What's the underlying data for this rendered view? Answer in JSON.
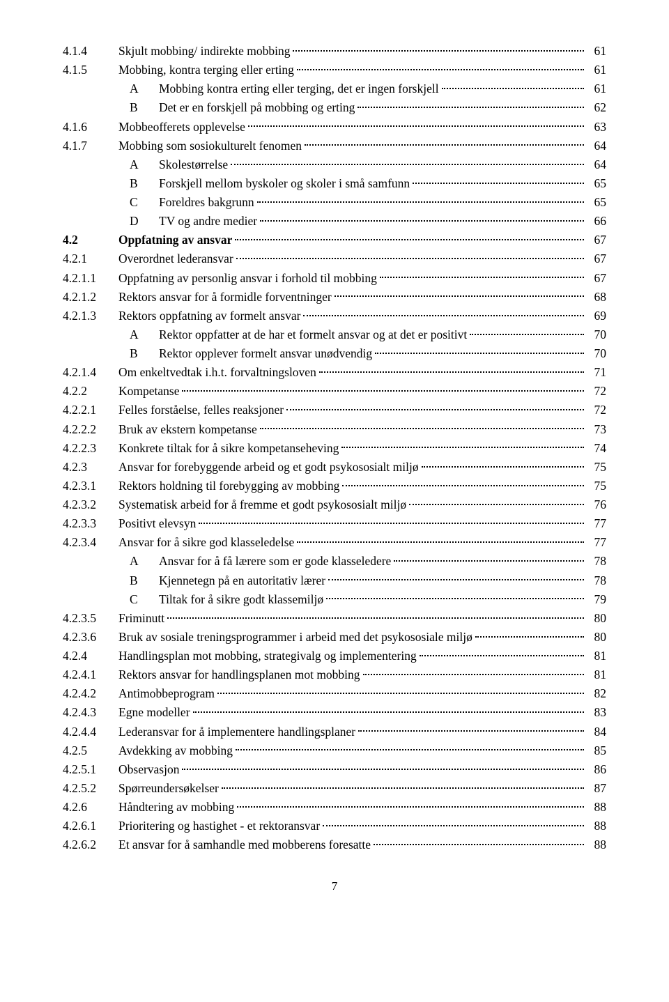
{
  "pageNumber": "7",
  "toc": [
    {
      "num": "4.1.4",
      "title": "Skjult mobbing/ indirekte mobbing",
      "page": "61",
      "bold": false,
      "indent": 0
    },
    {
      "num": "4.1.5",
      "title": "Mobbing, kontra terging eller erting",
      "page": "61",
      "bold": false,
      "indent": 0
    },
    {
      "letter": "A",
      "title": "Mobbing kontra erting eller terging, det er ingen forskjell",
      "page": "61",
      "indent": 1
    },
    {
      "letter": "B",
      "title": "Det er en forskjell på mobbing og erting",
      "page": "62",
      "indent": 1
    },
    {
      "num": "4.1.6",
      "title": "Mobbeofferets opplevelse",
      "page": "63",
      "bold": false,
      "indent": 0
    },
    {
      "num": "4.1.7",
      "title": "Mobbing som sosiokulturelt fenomen",
      "page": "64",
      "bold": false,
      "indent": 0
    },
    {
      "letter": "A",
      "title": "Skolestørrelse",
      "page": "64",
      "indent": 1
    },
    {
      "letter": "B",
      "title": "Forskjell mellom byskoler og skoler i små samfunn",
      "page": "65",
      "indent": 1
    },
    {
      "letter": "C",
      "title": "Foreldres bakgrunn",
      "page": "65",
      "indent": 1
    },
    {
      "letter": "D",
      "title": "TV og andre medier",
      "page": "66",
      "indent": 1
    },
    {
      "num": "4.2",
      "title": "Oppfatning av ansvar",
      "page": "67",
      "bold": true,
      "indent": 0
    },
    {
      "num": "4.2.1",
      "title": "Overordnet lederansvar",
      "page": "67",
      "bold": false,
      "indent": 0
    },
    {
      "num": "4.2.1.1",
      "title": "Oppfatning av personlig ansvar i forhold til mobbing",
      "page": "67",
      "bold": false,
      "indent": 0
    },
    {
      "num": "4.2.1.2",
      "title": "Rektors ansvar for å formidle forventninger",
      "page": "68",
      "bold": false,
      "indent": 0
    },
    {
      "num": "4.2.1.3",
      "title": "Rektors oppfatning av formelt ansvar",
      "page": "69",
      "bold": false,
      "indent": 0
    },
    {
      "letter": "A",
      "title": "Rektor oppfatter at de har et formelt ansvar og at det er positivt",
      "page": "70",
      "indent": 1
    },
    {
      "letter": "B",
      "title": "Rektor opplever formelt ansvar unødvendig",
      "page": "70",
      "indent": 1
    },
    {
      "num": "4.2.1.4",
      "title": "Om enkeltvedtak i.h.t. forvaltningsloven",
      "page": "71",
      "bold": false,
      "indent": 0
    },
    {
      "num": "4.2.2",
      "title": "Kompetanse",
      "page": "72",
      "bold": false,
      "indent": 0
    },
    {
      "num": "4.2.2.1",
      "title": "Felles forståelse, felles reaksjoner",
      "page": "72",
      "bold": false,
      "indent": 0
    },
    {
      "num": "4.2.2.2",
      "title": "Bruk av ekstern kompetanse",
      "page": "73",
      "bold": false,
      "indent": 0
    },
    {
      "num": "4.2.2.3",
      "title": "Konkrete tiltak for å sikre kompetanseheving",
      "page": "74",
      "bold": false,
      "indent": 0
    },
    {
      "num": "4.2.3",
      "title": "Ansvar for forebyggende arbeid og et godt psykososialt miljø",
      "page": "75",
      "bold": false,
      "indent": 0
    },
    {
      "num": "4.2.3.1",
      "title": "Rektors holdning til forebygging av mobbing",
      "page": "75",
      "bold": false,
      "indent": 0
    },
    {
      "num": "4.2.3.2",
      "title": "Systematisk arbeid for å fremme et godt psykososialt miljø",
      "page": "76",
      "bold": false,
      "indent": 0
    },
    {
      "num": "4.2.3.3",
      "title": "Positivt elevsyn",
      "page": "77",
      "bold": false,
      "indent": 0
    },
    {
      "num": "4.2.3.4",
      "title": "Ansvar for å sikre god klasseledelse",
      "page": "77",
      "bold": false,
      "indent": 0
    },
    {
      "letter": "A",
      "title": "Ansvar for å få lærere som er gode klasseledere",
      "page": "78",
      "indent": 1
    },
    {
      "letter": "B",
      "title": "Kjennetegn på en autoritativ lærer",
      "page": "78",
      "indent": 1
    },
    {
      "letter": "C",
      "title": "Tiltak for å sikre godt klassemiljø",
      "page": "79",
      "indent": 1
    },
    {
      "num": "4.2.3.5",
      "title": "Friminutt",
      "page": "80",
      "bold": false,
      "indent": 0
    },
    {
      "num": "4.2.3.6",
      "title": "Bruk av sosiale treningsprogrammer i arbeid med det psykososiale miljø",
      "page": "80",
      "bold": false,
      "indent": 0
    },
    {
      "num": "4.2.4",
      "title": "Handlingsplan mot mobbing, strategivalg og implementering",
      "page": "81",
      "bold": false,
      "indent": 0
    },
    {
      "num": "4.2.4.1",
      "title": "Rektors ansvar for handlingsplanen mot mobbing",
      "page": "81",
      "bold": false,
      "indent": 0
    },
    {
      "num": "4.2.4.2",
      "title": "Antimobbeprogram",
      "page": "82",
      "bold": false,
      "indent": 0
    },
    {
      "num": "4.2.4.3",
      "title": "Egne modeller",
      "page": "83",
      "bold": false,
      "indent": 0
    },
    {
      "num": "4.2.4.4",
      "title": "Lederansvar for å implementere handlingsplaner",
      "page": "84",
      "bold": false,
      "indent": 0
    },
    {
      "num": "4.2.5",
      "title": "Avdekking av mobbing",
      "page": "85",
      "bold": false,
      "indent": 0
    },
    {
      "num": "4.2.5.1",
      "title": "Observasjon",
      "page": "86",
      "bold": false,
      "indent": 0
    },
    {
      "num": "4.2.5.2",
      "title": "Spørreundersøkelser",
      "page": "87",
      "bold": false,
      "indent": 0
    },
    {
      "num": "4.2.6",
      "title": "Håndtering av mobbing",
      "page": "88",
      "bold": false,
      "indent": 0
    },
    {
      "num": "4.2.6.1",
      "title": "Prioritering og hastighet - et rektoransvar",
      "page": "88",
      "bold": false,
      "indent": 0
    },
    {
      "num": "4.2.6.2",
      "title": "Et ansvar for å samhandle med mobberens foresatte",
      "page": "88",
      "bold": false,
      "indent": 0
    }
  ]
}
